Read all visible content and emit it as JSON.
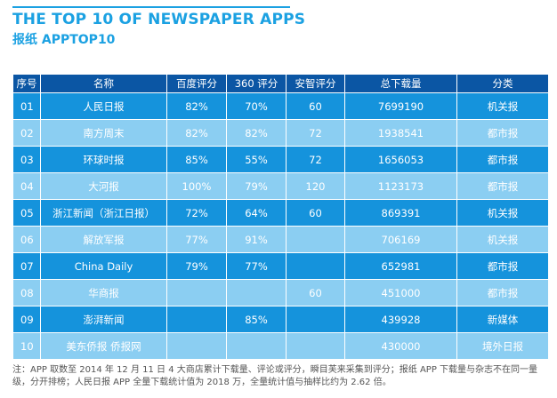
{
  "header": {
    "title": "THE TOP 10 OF NEWSPAPER APPS",
    "subtitle": "报纸 APPTOP10"
  },
  "table": {
    "columns": [
      "序号",
      "名称",
      "百度评分",
      "360 评分",
      "安智评分",
      "总下载量",
      "分类"
    ],
    "rows": [
      [
        "01",
        "人民日报",
        "82%",
        "70%",
        "60",
        "7699190",
        "机关报"
      ],
      [
        "02",
        "南方周末",
        "82%",
        "82%",
        "72",
        "1938541",
        "都市报"
      ],
      [
        "03",
        "环球时报",
        "85%",
        "55%",
        "72",
        "1656053",
        "都市报"
      ],
      [
        "04",
        "大河报",
        "100%",
        "79%",
        "120",
        "1123173",
        "都市报"
      ],
      [
        "05",
        "浙江新闻（浙江日报）",
        "72%",
        "64%",
        "60",
        "869391",
        "机关报"
      ],
      [
        "06",
        "解放军报",
        "77%",
        "91%",
        "",
        "706169",
        "机关报"
      ],
      [
        "07",
        "China Daily",
        "79%",
        "77%",
        "",
        "652981",
        "都市报"
      ],
      [
        "08",
        "华商报",
        "",
        "",
        "60",
        "451000",
        "都市报"
      ],
      [
        "09",
        "澎湃新闻",
        "",
        "85%",
        "",
        "439928",
        "新媒体"
      ],
      [
        "10",
        "美东侨报 侨报网",
        "",
        "",
        "",
        "430000",
        "境外日报"
      ]
    ]
  },
  "footnote": "注：APP 取数至 2014 年 12 月 11 日 4 大商店累计下载量、评论或评分，瞬目芙来采集到评分；报纸 APP 下载量与杂志不在同一量级，分开排榜；人民日报 APP 全量下载统计值为 2018 万，全量统计值与抽样比约为 2.62 倍。",
  "colors": {
    "accent": "#1ba1e2",
    "header_bg": "#0b56a4",
    "row_dark": "#1593dc",
    "row_light": "#8bcef2"
  }
}
